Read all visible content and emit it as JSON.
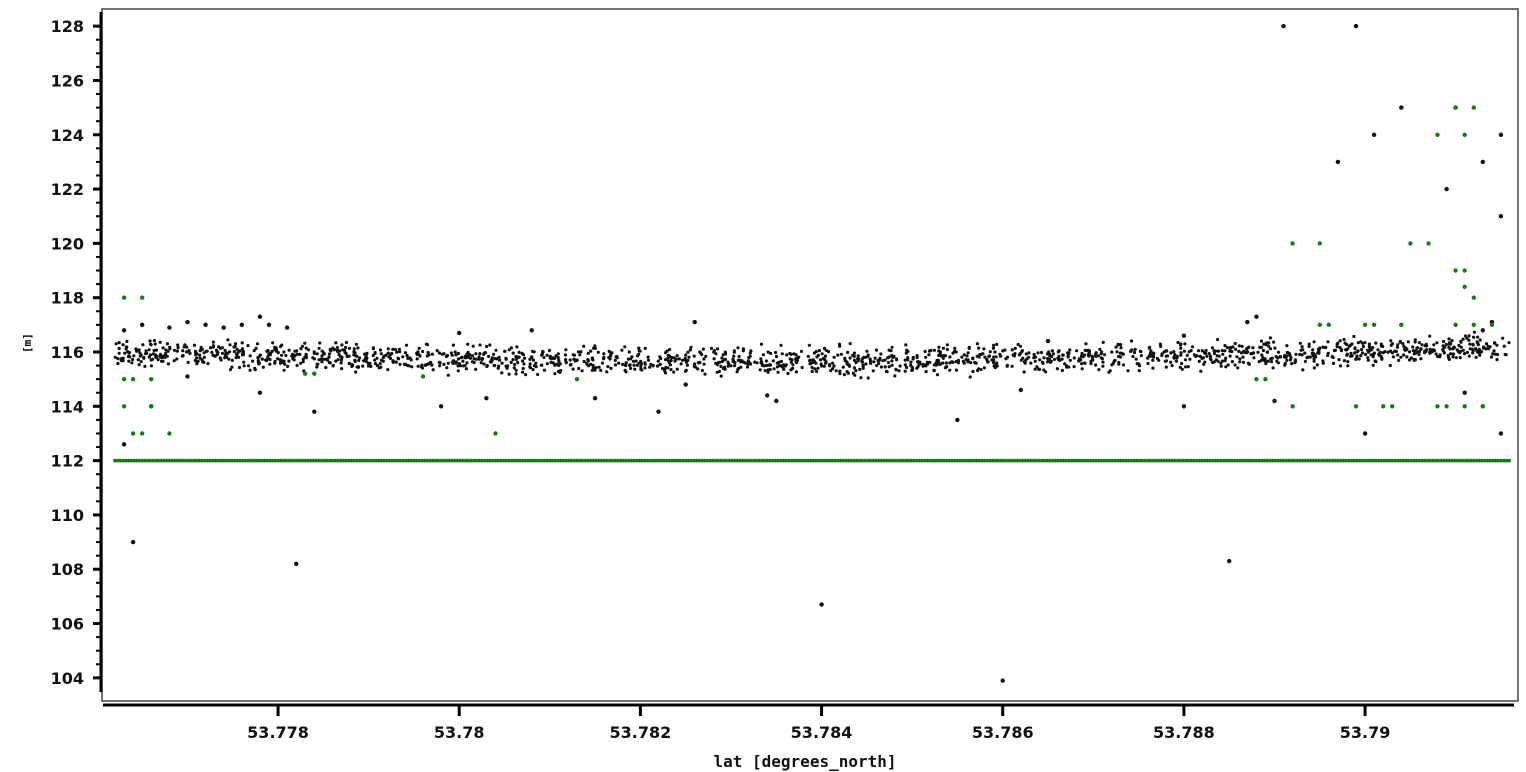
{
  "chart_data": {
    "type": "scatter",
    "xlabel": "lat [degrees_north]",
    "ylabel": "[m]",
    "xlim": [
      53.7762,
      53.7916
    ],
    "ylim": [
      103.7,
      128.3
    ],
    "x_ticks": [
      53.778,
      53.78,
      53.782,
      53.784,
      53.786,
      53.788,
      53.79
    ],
    "x_tick_labels": [
      "53.778",
      "53.78",
      "53.782",
      "53.784",
      "53.786",
      "53.788",
      "53.79"
    ],
    "y_ticks": [
      104,
      106,
      108,
      110,
      112,
      114,
      116,
      118,
      120,
      122,
      124,
      126,
      128
    ],
    "y_tick_labels": [
      "104",
      "106",
      "108",
      "110",
      "112",
      "114",
      "116",
      "118",
      "120",
      "122",
      "124",
      "126",
      "128"
    ],
    "grid": false,
    "legend": "none",
    "colors": {
      "series_black": "#111111",
      "series_green": "#1a7a1a"
    },
    "series": [
      {
        "color": "#111111",
        "description_band": {
          "level": 116.0,
          "spread": 0.35,
          "x_range": [
            53.7762,
            53.7916
          ]
        },
        "points": [
          [
            53.7763,
            116.8
          ],
          [
            53.7765,
            117.0
          ],
          [
            53.7768,
            116.9
          ],
          [
            53.777,
            117.1
          ],
          [
            53.7772,
            117.0
          ],
          [
            53.7774,
            116.9
          ],
          [
            53.7776,
            117.0
          ],
          [
            53.7778,
            117.3
          ],
          [
            53.7779,
            117.0
          ],
          [
            53.7781,
            116.9
          ],
          [
            53.7763,
            112.6
          ],
          [
            53.7764,
            109.0
          ],
          [
            53.7766,
            114.0
          ],
          [
            53.777,
            115.1
          ],
          [
            53.7778,
            114.5
          ],
          [
            53.7782,
            108.2
          ],
          [
            53.7784,
            113.8
          ],
          [
            53.7798,
            114.0
          ],
          [
            53.78,
            116.7
          ],
          [
            53.7803,
            114.3
          ],
          [
            53.7808,
            116.8
          ],
          [
            53.7815,
            114.3
          ],
          [
            53.7822,
            113.8
          ],
          [
            53.7826,
            117.1
          ],
          [
            53.7825,
            114.8
          ],
          [
            53.7834,
            114.4
          ],
          [
            53.7835,
            114.2
          ],
          [
            53.784,
            106.7
          ],
          [
            53.7855,
            113.5
          ],
          [
            53.786,
            103.9
          ],
          [
            53.7862,
            114.6
          ],
          [
            53.7865,
            116.4
          ],
          [
            53.788,
            114.0
          ],
          [
            53.788,
            116.6
          ],
          [
            53.7885,
            108.3
          ],
          [
            53.7887,
            117.1
          ],
          [
            53.7888,
            117.3
          ],
          [
            53.789,
            114.2
          ],
          [
            53.7891,
            128.0
          ],
          [
            53.7897,
            123.0
          ],
          [
            53.7899,
            128.0
          ],
          [
            53.79,
            113.0
          ],
          [
            53.7901,
            124.0
          ],
          [
            53.7904,
            125.0
          ],
          [
            53.7909,
            122.0
          ],
          [
            53.791,
            125.0
          ],
          [
            53.7911,
            114.5
          ],
          [
            53.7913,
            116.8
          ],
          [
            53.7914,
            117.1
          ],
          [
            53.7915,
            124.0
          ],
          [
            53.7915,
            121.0
          ],
          [
            53.7915,
            113.0
          ],
          [
            53.7913,
            123.0
          ]
        ]
      },
      {
        "color": "#1a7a1a",
        "description_band": {
          "level": 112.0,
          "x_range": [
            53.7762,
            53.7916
          ]
        },
        "points": [
          [
            53.7763,
            118.0
          ],
          [
            53.7765,
            118.0
          ],
          [
            53.7763,
            115.0
          ],
          [
            53.7764,
            115.0
          ],
          [
            53.7766,
            115.0
          ],
          [
            53.7763,
            114.0
          ],
          [
            53.7764,
            113.0
          ],
          [
            53.7765,
            113.0
          ],
          [
            53.7766,
            114.0
          ],
          [
            53.7768,
            113.0
          ],
          [
            53.7783,
            115.2
          ],
          [
            53.7784,
            115.2
          ],
          [
            53.7796,
            115.1
          ],
          [
            53.7804,
            113.0
          ],
          [
            53.7813,
            115.0
          ],
          [
            53.7888,
            115.0
          ],
          [
            53.7889,
            115.0
          ],
          [
            53.7892,
            120.0
          ],
          [
            53.7892,
            114.0
          ],
          [
            53.7895,
            120.0
          ],
          [
            53.7895,
            117.0
          ],
          [
            53.7896,
            117.0
          ],
          [
            53.7899,
            114.0
          ],
          [
            53.79,
            117.0
          ],
          [
            53.7901,
            117.0
          ],
          [
            53.7902,
            114.0
          ],
          [
            53.7903,
            114.0
          ],
          [
            53.7904,
            117.0
          ],
          [
            53.7905,
            120.0
          ],
          [
            53.7907,
            120.0
          ],
          [
            53.7908,
            124.0
          ],
          [
            53.7908,
            114.0
          ],
          [
            53.7909,
            114.0
          ],
          [
            53.791,
            117.0
          ],
          [
            53.791,
            125.0
          ],
          [
            53.791,
            119.0
          ],
          [
            53.7911,
            119.0
          ],
          [
            53.7911,
            118.4
          ],
          [
            53.7911,
            124.0
          ],
          [
            53.7912,
            125.0
          ],
          [
            53.7911,
            114.0
          ],
          [
            53.7912,
            118.0
          ],
          [
            53.7912,
            117.0
          ],
          [
            53.7913,
            114.0
          ],
          [
            53.7913,
            114.0
          ],
          [
            53.7914,
            117.0
          ]
        ]
      }
    ]
  }
}
